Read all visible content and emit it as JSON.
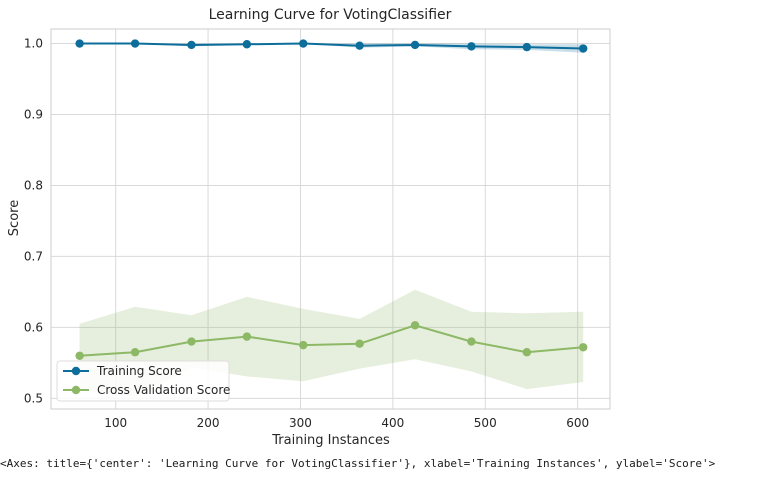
{
  "chart_data": {
    "type": "line",
    "title": "Learning Curve for VotingClassifier",
    "xlabel": "Training Instances",
    "ylabel": "Score",
    "xlim": [
      30,
      635
    ],
    "ylim": [
      0.485,
      1.0205
    ],
    "xticks": [
      100,
      200,
      300,
      400,
      500,
      600
    ],
    "yticks": [
      0.5,
      0.6,
      0.7,
      0.8,
      0.9,
      1.0
    ],
    "xtick_labels": [
      "100",
      "200",
      "300",
      "400",
      "500",
      "600"
    ],
    "ytick_labels": [
      "0.5",
      "0.6",
      "0.7",
      "0.8",
      "0.9",
      "1.0"
    ],
    "grid": true,
    "legend_position": "lower-left",
    "x": [
      61,
      121,
      182,
      242,
      303,
      364,
      424,
      485,
      545,
      606
    ],
    "series": [
      {
        "name": "Training Score",
        "color": "#0d6e9c",
        "values": [
          1.0,
          1.0,
          0.998,
          0.999,
          1.0,
          0.997,
          0.998,
          0.996,
          0.995,
          0.993
        ],
        "band_upper": [
          1.0,
          1.0,
          1.0,
          1.0,
          1.0,
          1.0,
          1.0,
          1.0,
          0.999,
          0.999
        ],
        "band_lower": [
          1.0,
          1.0,
          0.996,
          0.998,
          1.0,
          0.994,
          0.996,
          0.992,
          0.991,
          0.987
        ]
      },
      {
        "name": "Cross Validation Score",
        "color": "#8db866",
        "values": [
          0.56,
          0.565,
          0.58,
          0.587,
          0.575,
          0.577,
          0.603,
          0.58,
          0.565,
          0.572
        ],
        "band_upper": [
          0.605,
          0.629,
          0.617,
          0.643,
          0.626,
          0.612,
          0.653,
          0.622,
          0.62,
          0.622
        ],
        "band_lower": [
          0.515,
          0.501,
          0.543,
          0.531,
          0.524,
          0.542,
          0.555,
          0.538,
          0.513,
          0.523
        ]
      }
    ]
  },
  "repr_text": "<Axes: title={'center': 'Learning Curve for VotingClassifier'}, xlabel='Training Instances', ylabel='Score'>"
}
